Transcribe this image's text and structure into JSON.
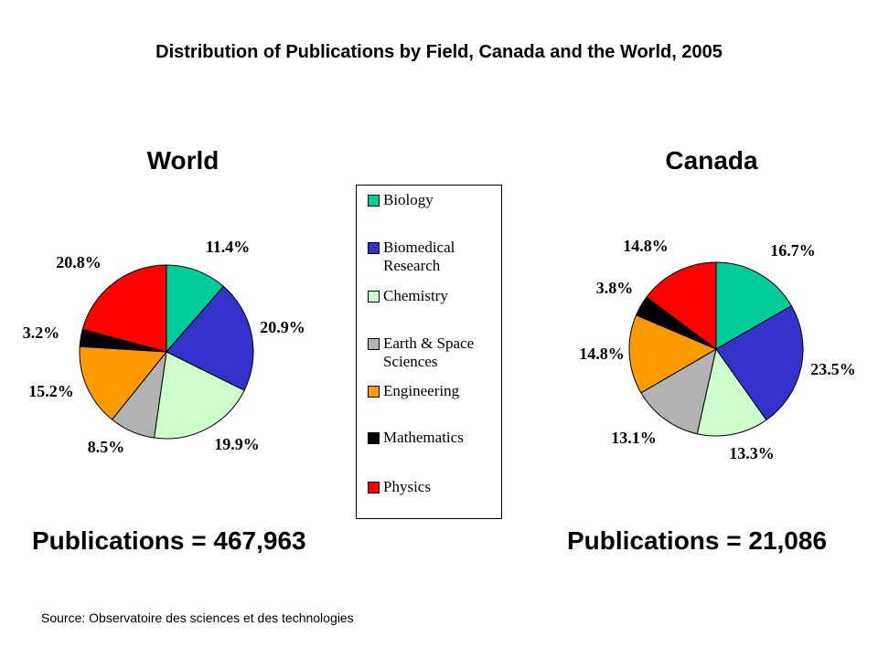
{
  "title": "Distribution of Publications by Field, Canada and the World, 2005",
  "source": "Source: Observatoire des sciences et des technologies",
  "legend": [
    {
      "label": "Biology",
      "color": "#00CC99"
    },
    {
      "label": "Biomedical\nResearch",
      "color": "#3333CC"
    },
    {
      "label": "Chemistry",
      "color": "#CCFFCC"
    },
    {
      "label": "Earth & Space\nSciences",
      "color": "#B2B2B2"
    },
    {
      "label": "Engineering",
      "color": "#FF9900"
    },
    {
      "label": "Mathematics",
      "color": "#000000"
    },
    {
      "label": "Physics",
      "color": "#FF0000"
    }
  ],
  "chart_data": [
    {
      "type": "pie",
      "title": "World",
      "footer": "Publications = 467,963",
      "categories": [
        "Biology",
        "Biomedical Research",
        "Chemistry",
        "Earth & Space Sciences",
        "Engineering",
        "Mathematics",
        "Physics"
      ],
      "values": [
        11.4,
        20.9,
        19.9,
        8.5,
        15.2,
        3.2,
        20.8
      ],
      "labels": [
        "11.4%",
        "20.9%",
        "19.9%",
        "8.5%",
        "15.2%",
        "3.2%",
        "20.8%"
      ]
    },
    {
      "type": "pie",
      "title": "Canada",
      "footer": "Publications = 21,086",
      "categories": [
        "Biology",
        "Biomedical Research",
        "Chemistry",
        "Earth & Space Sciences",
        "Engineering",
        "Mathematics",
        "Physics"
      ],
      "values": [
        16.7,
        23.5,
        13.3,
        13.1,
        14.8,
        3.8,
        14.8
      ],
      "labels": [
        "16.7%",
        "23.5%",
        "13.3%",
        "13.1%",
        "14.8%",
        "3.8%",
        "14.8%"
      ]
    }
  ]
}
